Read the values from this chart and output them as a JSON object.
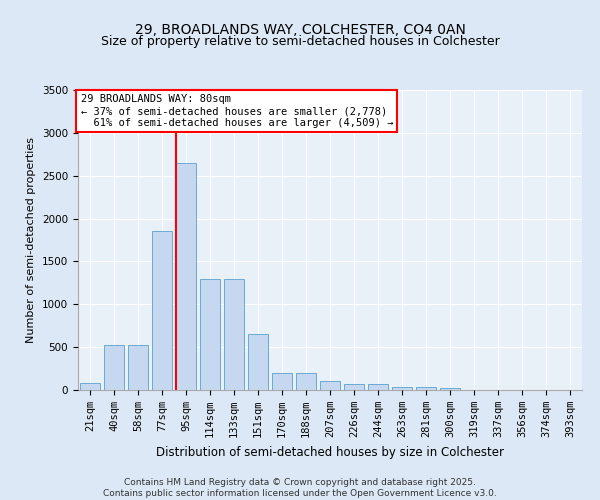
{
  "title1": "29, BROADLANDS WAY, COLCHESTER, CO4 0AN",
  "title2": "Size of property relative to semi-detached houses in Colchester",
  "xlabel": "Distribution of semi-detached houses by size in Colchester",
  "ylabel": "Number of semi-detached properties",
  "categories": [
    "21sqm",
    "40sqm",
    "58sqm",
    "77sqm",
    "95sqm",
    "114sqm",
    "133sqm",
    "151sqm",
    "170sqm",
    "188sqm",
    "207sqm",
    "226sqm",
    "244sqm",
    "263sqm",
    "281sqm",
    "300sqm",
    "319sqm",
    "337sqm",
    "356sqm",
    "374sqm",
    "393sqm"
  ],
  "values": [
    80,
    530,
    530,
    1850,
    2650,
    1300,
    1300,
    650,
    200,
    200,
    110,
    70,
    70,
    40,
    40,
    20,
    5,
    5,
    3,
    2,
    1
  ],
  "bar_color": "#c5d8f0",
  "bar_edge_color": "#6aaad4",
  "vline_x_index": 4,
  "vline_color": "red",
  "annotation_line1": "29 BROADLANDS WAY: 80sqm",
  "annotation_line2": "← 37% of semi-detached houses are smaller (2,778)",
  "annotation_line3": "  61% of semi-detached houses are larger (4,509) →",
  "annotation_box_color": "white",
  "annotation_box_edge": "red",
  "ylim_max": 3500,
  "yticks": [
    0,
    500,
    1000,
    1500,
    2000,
    2500,
    3000,
    3500
  ],
  "footer": "Contains HM Land Registry data © Crown copyright and database right 2025.\nContains public sector information licensed under the Open Government Licence v3.0.",
  "bg_color": "#dce8f5",
  "plot_bg_color": "#e8f0f8",
  "title1_fontsize": 10,
  "title2_fontsize": 9,
  "xlabel_fontsize": 8.5,
  "ylabel_fontsize": 8,
  "tick_fontsize": 7.5,
  "footer_fontsize": 6.5,
  "annotation_fontsize": 7.5
}
